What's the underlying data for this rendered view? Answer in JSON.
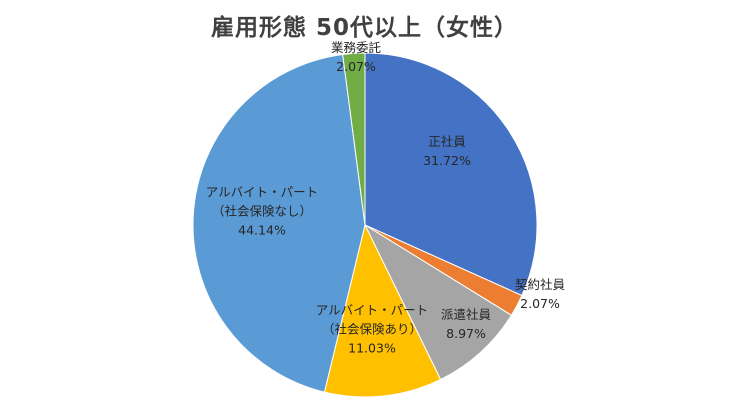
{
  "chart_data": {
    "type": "pie",
    "title": "雇用形態 50代以上（女性）",
    "slices": [
      {
        "label": [
          "正社員"
        ],
        "value": 31.72,
        "value_label": "31.72%",
        "color": "#4472C4"
      },
      {
        "label": [
          "契約社員"
        ],
        "value": 2.07,
        "value_label": "2.07%",
        "color": "#ED7D31"
      },
      {
        "label": [
          "派遣社員"
        ],
        "value": 8.97,
        "value_label": "8.97%",
        "color": "#A5A5A5"
      },
      {
        "label": [
          "アルバイト・パート",
          "（社会保険あり）"
        ],
        "value": 11.03,
        "value_label": "11.03%",
        "color": "#FFC000"
      },
      {
        "label": [
          "アルバイト・パート",
          "（社会保険なし）"
        ],
        "value": 44.14,
        "value_label": "44.14%",
        "color": "#5B9BD5"
      },
      {
        "label": [
          "業務委託"
        ],
        "value": 2.07,
        "value_label": "2.07%",
        "color": "#70AD47"
      }
    ],
    "start": "12 o'clock",
    "direction": "clockwise",
    "legend": "none"
  }
}
